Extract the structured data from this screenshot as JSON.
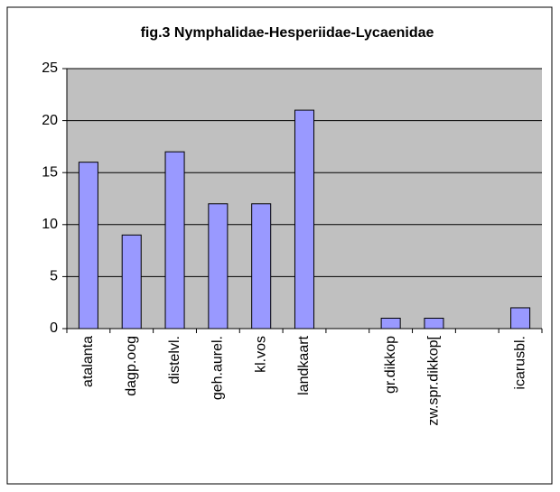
{
  "chart_data": {
    "type": "bar",
    "title": "fig.3  Nymphalidae-Hesperiidae-Lycaenidae",
    "categories": [
      "atalanta",
      "dagp.oog",
      "distelvl.",
      "geh.aurel.",
      "kl.vos",
      "landkaart",
      null,
      "gr.dikkop",
      "zw.spr.dikkop[",
      null,
      "icarusbl."
    ],
    "values": [
      16,
      9,
      17,
      12,
      12,
      21,
      null,
      1,
      1,
      null,
      2
    ],
    "color": "#9999ff",
    "ylim": [
      0,
      25
    ],
    "yticks": [
      0,
      5,
      10,
      15,
      20,
      25
    ],
    "grid": true
  }
}
